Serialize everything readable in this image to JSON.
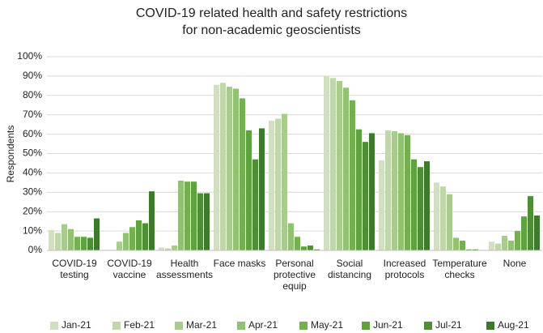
{
  "chart_data": {
    "type": "bar",
    "title": "COVID-19 related health and safety restrictions\nfor non-academic geoscientists",
    "y_label": "Respondents",
    "categories": [
      "COVID-19\ntesting",
      "COVID-19\nvaccine",
      "Health\nassessments",
      "Face masks",
      "Personal\nprotective\nequip",
      "Social\ndistancing",
      "Increased\nprotocols",
      "Temperature\nchecks",
      "None"
    ],
    "series": [
      {
        "name": "Jan-21",
        "color": "#d3dfc3",
        "values": [
          10.5,
          0,
          1.5,
          85.5,
          67,
          90,
          46.5,
          35,
          4.5
        ]
      },
      {
        "name": "Feb-21",
        "color": "#bfd7aa",
        "values": [
          9,
          0,
          1,
          86.5,
          68,
          89,
          62,
          33,
          3.5
        ]
      },
      {
        "name": "Mar-21",
        "color": "#a9cc8e",
        "values": [
          13.5,
          4.5,
          2.5,
          84.5,
          70.5,
          87.5,
          61.5,
          29,
          7.5
        ]
      },
      {
        "name": "Apr-21",
        "color": "#90c272",
        "values": [
          11,
          9,
          36,
          83.5,
          14,
          84,
          60.5,
          6.5,
          5
        ]
      },
      {
        "name": "May-21",
        "color": "#74b050",
        "values": [
          7,
          12,
          35.5,
          78.5,
          7,
          77.5,
          59.5,
          5,
          10
        ]
      },
      {
        "name": "Jun-21",
        "color": "#5fa341",
        "values": [
          7,
          15.5,
          35.5,
          62,
          2,
          62.5,
          47,
          0.5,
          17.5
        ]
      },
      {
        "name": "Jul-21",
        "color": "#4e8f36",
        "values": [
          6.5,
          14,
          29.5,
          47,
          2.5,
          56,
          43,
          0.5,
          28
        ]
      },
      {
        "name": "Aug-21",
        "color": "#3e7a2c",
        "values": [
          16.5,
          30.5,
          29.5,
          63,
          0.5,
          60.5,
          46,
          0,
          18
        ]
      }
    ],
    "ylim": [
      0,
      100
    ],
    "yticks": [
      {
        "value": 0,
        "label": "0%"
      },
      {
        "value": 10,
        "label": "10%"
      },
      {
        "value": 20,
        "label": "20%"
      },
      {
        "value": 30,
        "label": "30%"
      },
      {
        "value": 40,
        "label": "40%"
      },
      {
        "value": 50,
        "label": "50%"
      },
      {
        "value": 60,
        "label": "60%"
      },
      {
        "value": 70,
        "label": "70%"
      },
      {
        "value": 80,
        "label": "80%"
      },
      {
        "value": 90,
        "label": "90%"
      },
      {
        "value": 100,
        "label": "100%"
      }
    ],
    "grid": true,
    "legend": "bottom"
  }
}
